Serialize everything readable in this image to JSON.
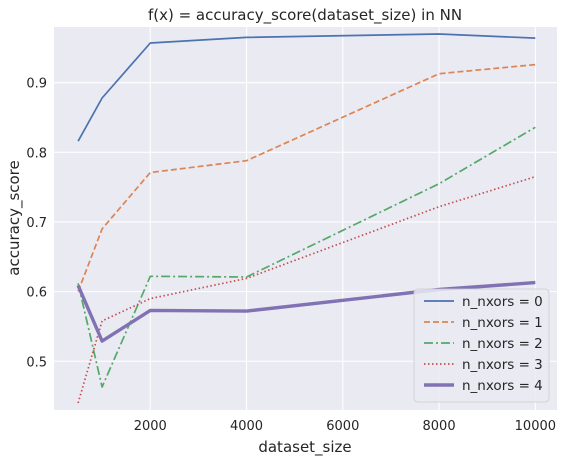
{
  "chart_data": {
    "type": "line",
    "title": "f(x) = accuracy_score(dataset_size) in NN",
    "xlabel": "dataset_size",
    "ylabel": "accuracy_score",
    "xlim": [
      0,
      10450
    ],
    "ylim": [
      0.43,
      0.98
    ],
    "x": [
      500,
      1000,
      2000,
      4000,
      8000,
      10000
    ],
    "xticks": [
      2000,
      4000,
      6000,
      8000,
      10000
    ],
    "yticks": [
      0.5,
      0.6,
      0.7,
      0.8,
      0.9
    ],
    "grid": true,
    "legend_position": "bottom-right",
    "series": [
      {
        "name": "n_nxors = 0",
        "values": [
          0.816,
          0.878,
          0.957,
          0.965,
          0.97,
          0.964
        ],
        "color": "#4c72b0",
        "dash": "solid"
      },
      {
        "name": "n_nxors = 1",
        "values": [
          0.6,
          0.69,
          0.771,
          0.788,
          0.913,
          0.926
        ],
        "color": "#dd8452",
        "dash": "dashed"
      },
      {
        "name": "n_nxors = 2",
        "values": [
          0.612,
          0.463,
          0.622,
          0.621,
          0.755,
          0.836
        ],
        "color": "#55a868",
        "dash": "dashdot"
      },
      {
        "name": "n_nxors = 3",
        "values": [
          0.44,
          0.558,
          0.59,
          0.619,
          0.722,
          0.765
        ],
        "color": "#c44e52",
        "dash": "dotted"
      },
      {
        "name": "n_nxors = 4",
        "values": [
          0.609,
          0.529,
          0.573,
          0.572,
          0.603,
          0.613
        ],
        "color": "#8172b3",
        "dash": "thick"
      }
    ]
  }
}
